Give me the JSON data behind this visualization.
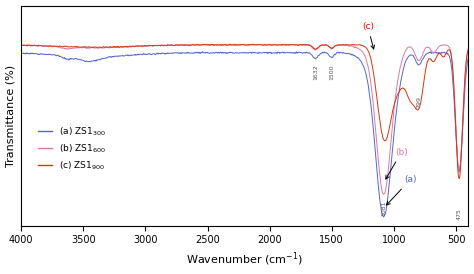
{
  "title": "",
  "xlabel": "Wavenumber (cm$^{-1}$)",
  "ylabel": "Transmittance (%)",
  "xlim": [
    4000,
    400
  ],
  "legend_labels": [
    "(a) ZS1$_{300}$",
    "(b) ZS1$_{600}$",
    "(c) ZS1$_{900}$"
  ],
  "colors": {
    "a": "#5566CC",
    "b": "#DD77AA",
    "c": "#DD3311"
  },
  "xticks": [
    4000,
    3500,
    3000,
    2500,
    2000,
    1500,
    1000,
    500
  ],
  "baseline_a": 0.88,
  "baseline_bc": 0.92
}
